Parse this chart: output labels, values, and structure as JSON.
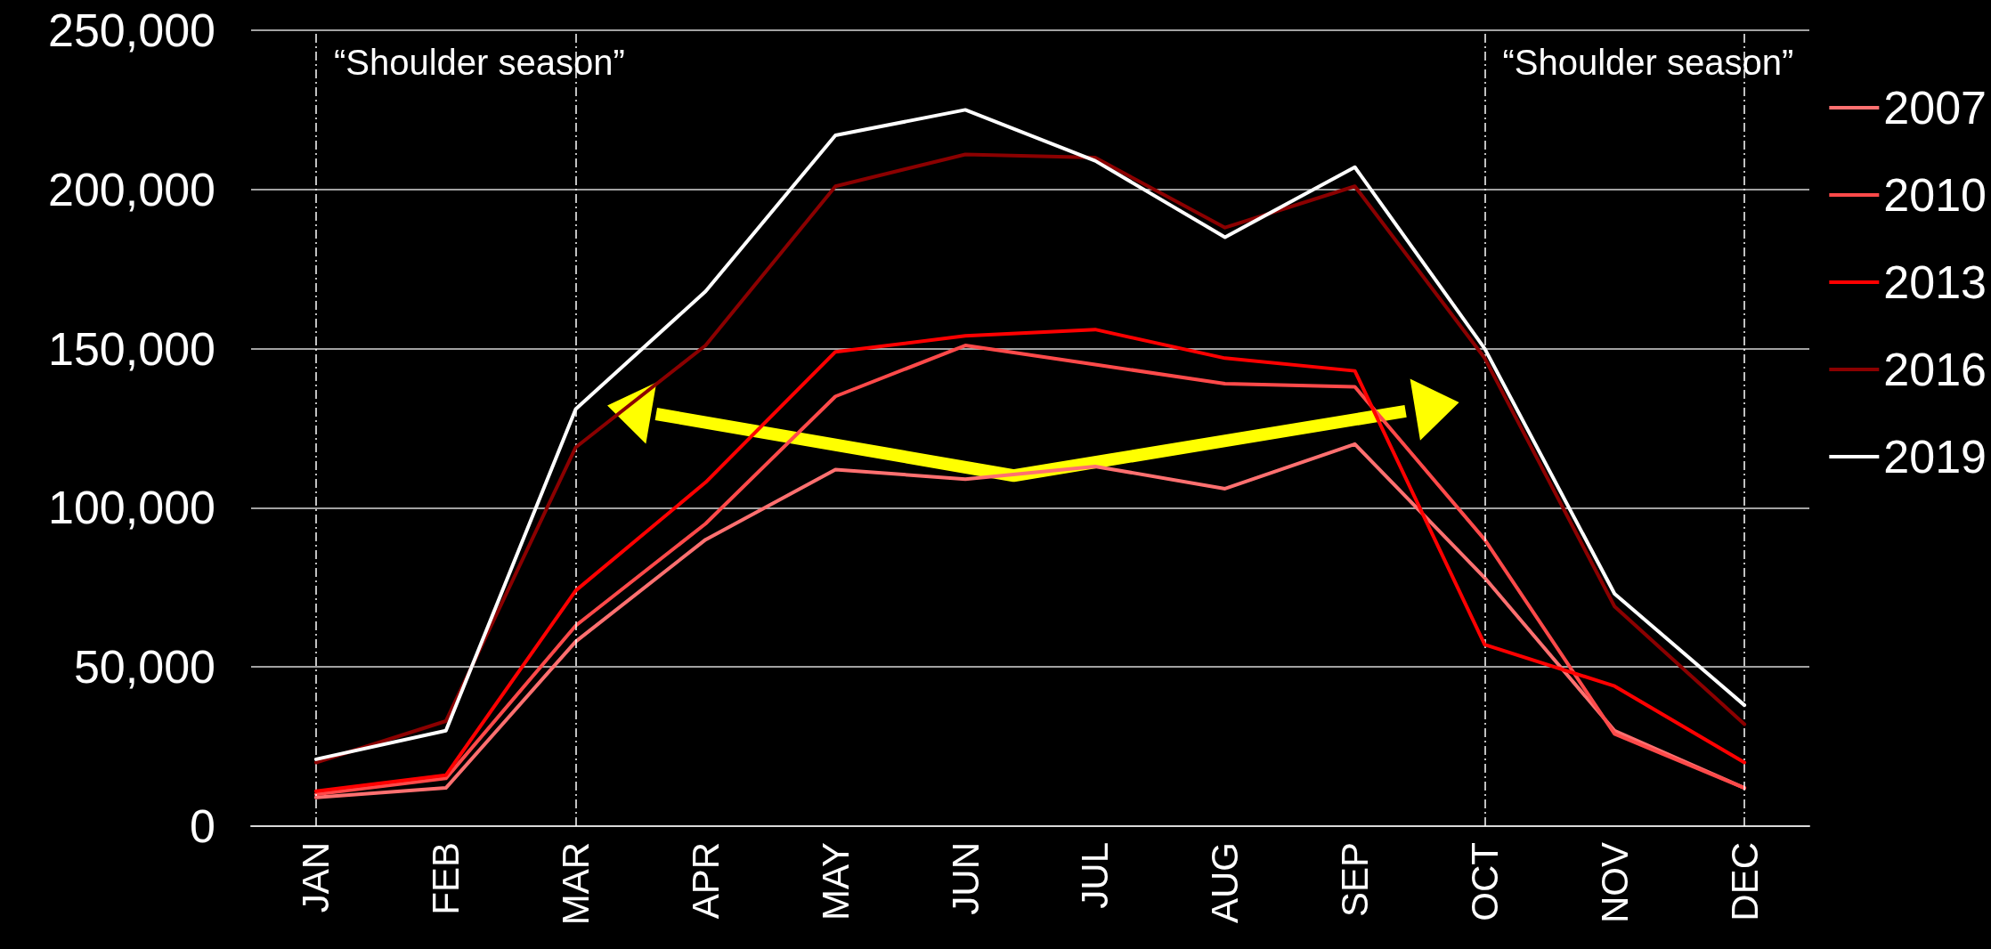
{
  "chart_data": {
    "type": "line",
    "categories": [
      "JAN",
      "FEB",
      "MAR",
      "APR",
      "MAY",
      "JUN",
      "JUL",
      "AUG",
      "SEP",
      "OCT",
      "NOV",
      "DEC"
    ],
    "series": [
      {
        "name": "2007",
        "color": "#ff7070",
        "values": [
          9000,
          12000,
          58000,
          90000,
          112000,
          109000,
          113000,
          106000,
          120000,
          78000,
          30000,
          12000
        ]
      },
      {
        "name": "2010",
        "color": "#ff4a4a",
        "values": [
          10000,
          15000,
          63000,
          95000,
          135000,
          151000,
          145000,
          139000,
          138000,
          90000,
          29000,
          12000
        ]
      },
      {
        "name": "2013",
        "color": "#ff0000",
        "values": [
          11000,
          16000,
          74000,
          108000,
          149000,
          154000,
          156000,
          147000,
          143000,
          57000,
          44000,
          20000
        ]
      },
      {
        "name": "2016",
        "color": "#8b0000",
        "values": [
          20000,
          33000,
          119000,
          151000,
          201000,
          211000,
          210000,
          188000,
          201000,
          147000,
          69000,
          32000
        ]
      },
      {
        "name": "2019",
        "color": "#ffffff",
        "values": [
          21000,
          30000,
          131000,
          168000,
          217000,
          225000,
          209000,
          185000,
          207000,
          150000,
          73000,
          38000
        ]
      }
    ],
    "ylim": [
      0,
      250000
    ],
    "yticks": [
      0,
      {
        "value": 50000,
        "label": "50,000"
      },
      {
        "value": 100000,
        "label": "100,000"
      },
      {
        "value": 150000,
        "label": "150,000"
      },
      {
        "value": 200000,
        "label": "200,000"
      },
      {
        "value": 250000,
        "label": "250,000"
      }
    ],
    "grid": "y",
    "legend": "right",
    "marker": "none",
    "line_style": "solid",
    "ref_lines": [
      {
        "axis": "x",
        "value": "JAN",
        "color": "#ffffff",
        "line_style": "dashed"
      },
      {
        "axis": "x",
        "value": "MAR",
        "color": "#ffffff",
        "line_style": "dashed"
      },
      {
        "axis": "x",
        "value": "OCT",
        "color": "#ffffff",
        "line_style": "dashed"
      },
      {
        "axis": "x",
        "value": "DEC",
        "color": "#ffffff",
        "line_style": "dashed"
      }
    ],
    "annotations": [
      "“Shoulder season”",
      "“Shoulder season”"
    ]
  }
}
